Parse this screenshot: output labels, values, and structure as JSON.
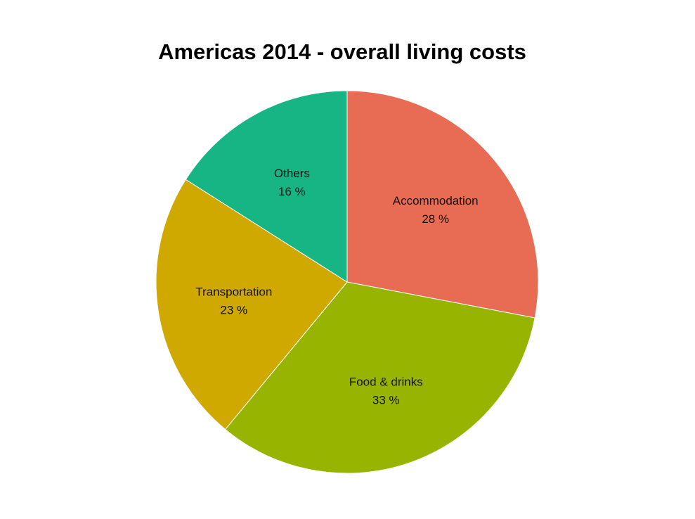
{
  "chart_data": {
    "type": "pie",
    "title": "Americas 2014 - overall living costs",
    "categories": [
      "Accommodation",
      "Food & drinks",
      "Transportation",
      "Others"
    ],
    "values": [
      28,
      33,
      23,
      16
    ],
    "value_labels": [
      "28 %",
      "33 %",
      "23 %",
      "16 %"
    ],
    "colors": [
      "#E86B54",
      "#97B500",
      "#CFA800",
      "#17B584"
    ],
    "start_angle": "12 o'clock",
    "direction": "clockwise",
    "legend": "none"
  }
}
